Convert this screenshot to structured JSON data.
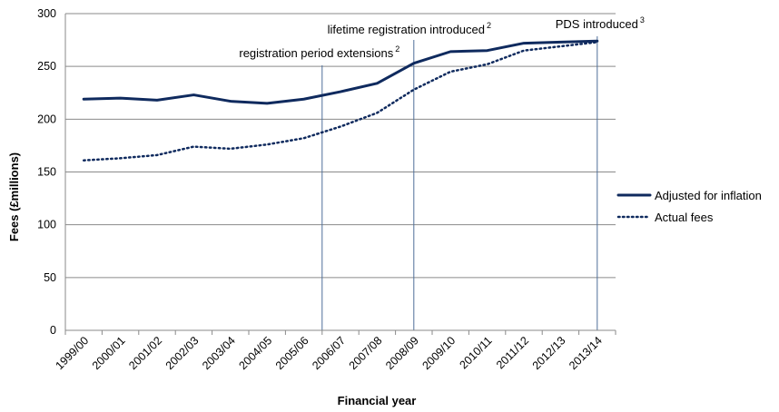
{
  "chart_data": {
    "type": "line",
    "xlabel": "Financial year",
    "ylabel": "Fees (£millions)",
    "categories": [
      "1999/00",
      "2000/01",
      "2001/02",
      "2002/03",
      "2003/04",
      "2004/05",
      "2005/06",
      "2006/07",
      "2007/08",
      "2008/09",
      "2009/10",
      "2010/11",
      "2011/12",
      "2012/13",
      "2013/14"
    ],
    "ylim": [
      0,
      300
    ],
    "yticks": [
      "0",
      "50",
      "100",
      "150",
      "200",
      "250",
      "300"
    ],
    "grid": true,
    "legend_position": "right",
    "series": [
      {
        "name": "Adjusted for inflation",
        "style": "solid",
        "color": "#0f2a5e",
        "values": [
          219,
          220,
          218,
          223,
          217,
          215,
          219,
          226,
          234,
          253,
          264,
          265,
          272,
          273,
          274
        ]
      },
      {
        "name": "Actual fees",
        "style": "dotted",
        "color": "#0f2a5e",
        "values": [
          161,
          163,
          166,
          174,
          172,
          176,
          182,
          193,
          206,
          228,
          245,
          252,
          265,
          269,
          273
        ]
      }
    ],
    "annotations": [
      {
        "text": "registration  period extensions",
        "sup": "2",
        "x_position": 6.5
      },
      {
        "text": "lifetime registration introduced",
        "sup": "2",
        "x_position": 9.0
      },
      {
        "text": "PDS introduced",
        "sup": "3",
        "x_position": 14.0
      }
    ]
  }
}
